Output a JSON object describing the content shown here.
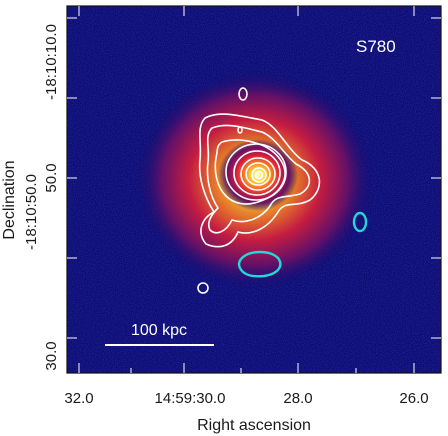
{
  "panel_label": "S780",
  "scale_bar_label": "100 kpc",
  "x_axis": {
    "title": "Right ascension",
    "ticks": [
      "32.0",
      "14:59:30.0",
      "28.0",
      "26.0"
    ]
  },
  "y_axis": {
    "title": "Declination",
    "ticks": [
      "-18:10:10.0",
      "50.0",
      "-18:10:50.0",
      "30.0"
    ]
  },
  "colors": {
    "background": "#0a0a6e",
    "contours_main": "#ffffff",
    "contours_secondary": "#27d6d6",
    "scale_bar": "#ffffff",
    "frame": "#111111"
  }
}
